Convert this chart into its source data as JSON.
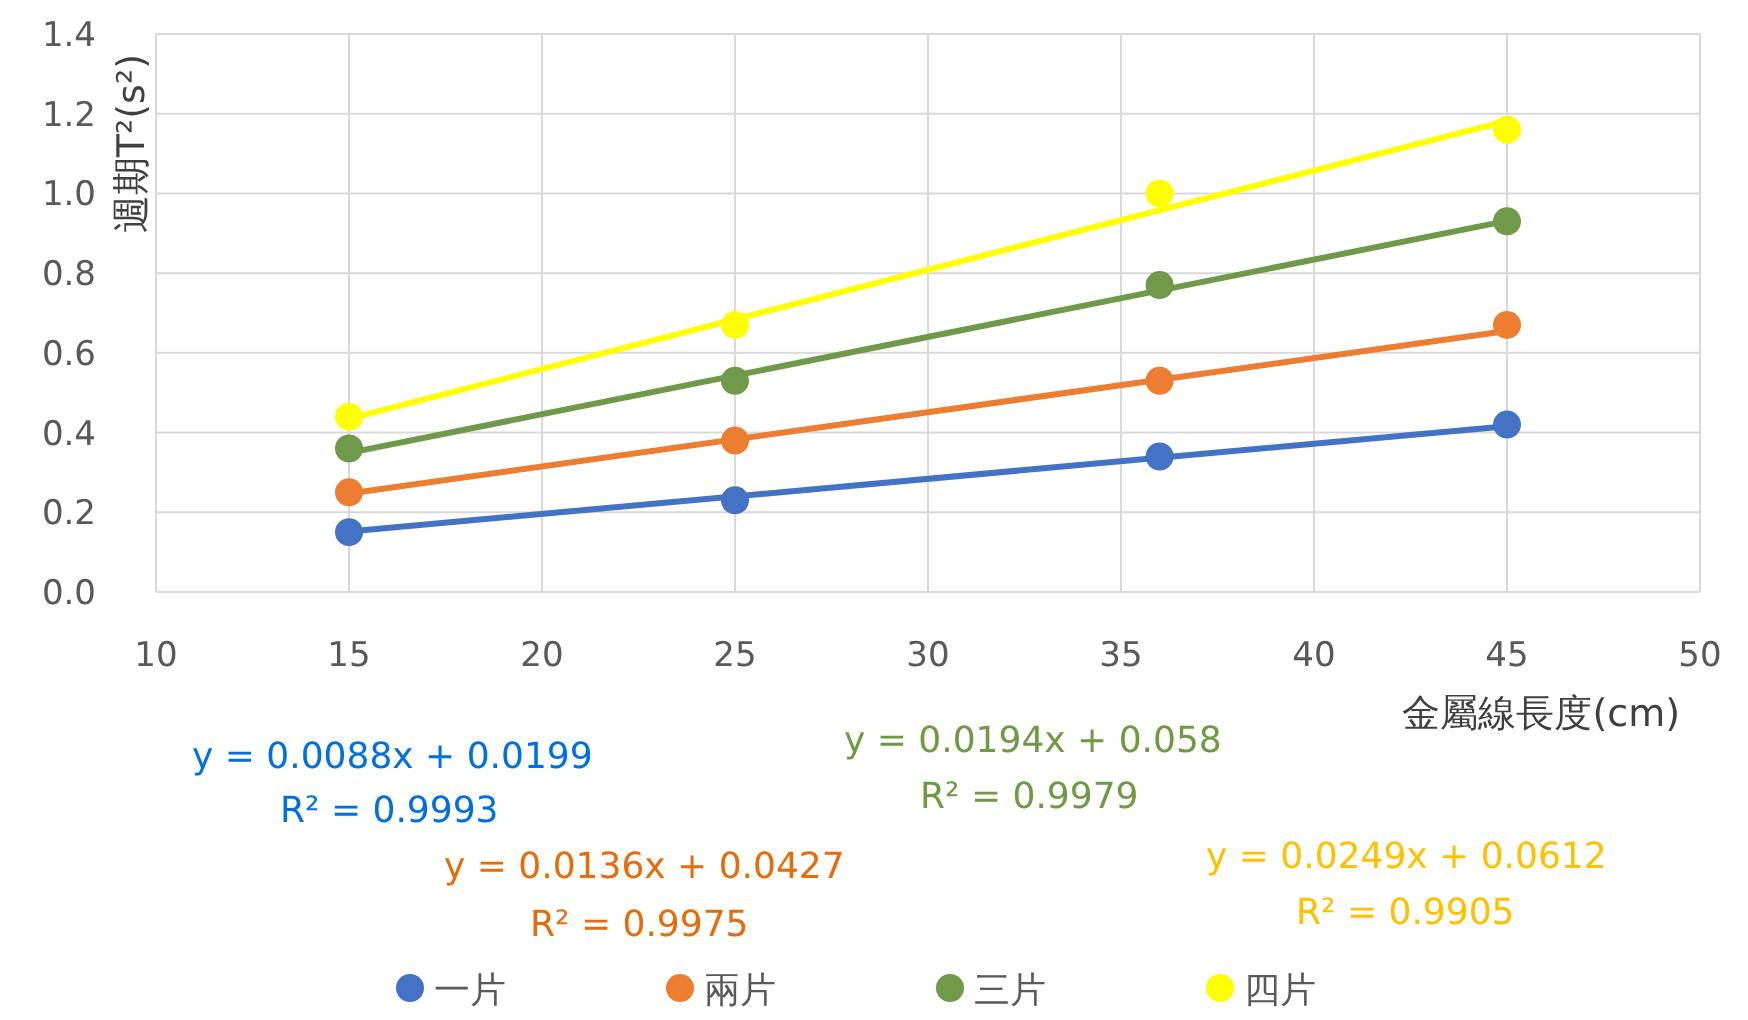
{
  "chart_data": {
    "type": "scatter",
    "xlabel": "金屬線長度(cm)",
    "ylabel": "週期T²(s²)",
    "xlim": [
      10,
      50
    ],
    "xticks": [
      10,
      15,
      20,
      25,
      30,
      35,
      40,
      45,
      50
    ],
    "ylim": [
      0,
      1.4
    ],
    "yticks": [
      {
        "value": 0,
        "label": "0.0"
      },
      {
        "value": 0.2,
        "label": "0.2"
      },
      {
        "value": 0.4,
        "label": "0.4"
      },
      {
        "value": 0.6,
        "label": "0.6"
      },
      {
        "value": 0.8,
        "label": "0.8"
      },
      {
        "value": 1,
        "label": "1.0"
      },
      {
        "value": 1.2,
        "label": "1.2"
      },
      {
        "value": 1.4,
        "label": "1.4"
      }
    ],
    "grid": true,
    "legend": "bottom",
    "marker": "circle",
    "series": [
      {
        "name": "一片",
        "color": "#4472c4",
        "x": [
          15,
          25,
          36,
          45
        ],
        "values": [
          0.15,
          0.23,
          0.34,
          0.42
        ]
      },
      {
        "name": "兩片",
        "color": "#ed7d31",
        "x": [
          15,
          25,
          36,
          45
        ],
        "values": [
          0.25,
          0.38,
          0.53,
          0.67
        ]
      },
      {
        "name": "三片",
        "color": "#70994a",
        "x": [
          15,
          25,
          36,
          45
        ],
        "values": [
          0.36,
          0.53,
          0.77,
          0.93
        ]
      },
      {
        "name": "四片",
        "color": "#ffff00",
        "x": [
          15,
          25,
          36,
          45
        ],
        "values": [
          0.44,
          0.67,
          1.0,
          1.16
        ]
      },
      {
        "type": "line",
        "marker": "none",
        "color": "#4472c4",
        "x": [
          15,
          45
        ],
        "values": [
          0.152,
          0.416
        ]
      },
      {
        "type": "line",
        "marker": "none",
        "color": "#ed7d31",
        "x": [
          15,
          45
        ],
        "values": [
          0.247,
          0.655
        ]
      },
      {
        "type": "line",
        "marker": "none",
        "color": "#70994a",
        "x": [
          15,
          45
        ],
        "values": [
          0.349,
          0.931
        ]
      },
      {
        "type": "line",
        "marker": "none",
        "color": "#ffff00",
        "x": [
          15,
          45
        ],
        "values": [
          0.435,
          1.182
        ]
      }
    ],
    "annotations": [
      "y = 0.0088x + 0.0199",
      "R² = 0.9993",
      "y = 0.0136x + 0.0427",
      "R² = 0.9975",
      "y = 0.0194x + 0.058",
      "R² = 0.9979",
      "y = 0.0249x + 0.0612",
      "R² = 0.9905"
    ]
  }
}
